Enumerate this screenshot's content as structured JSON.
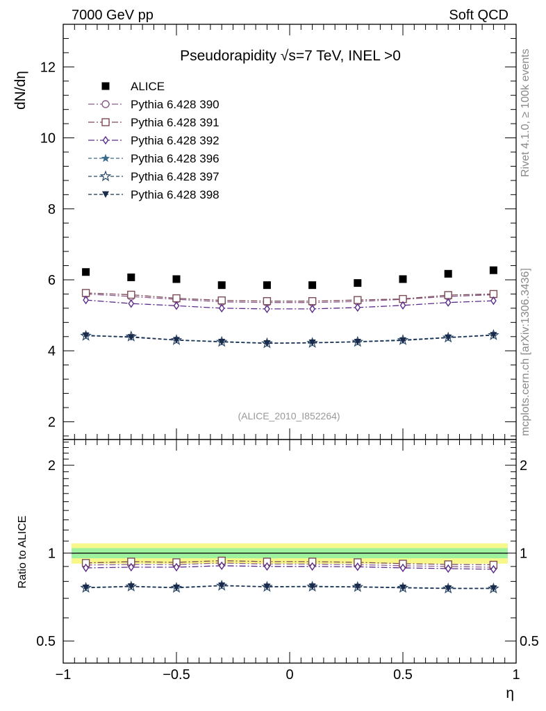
{
  "header": {
    "left": "7000 GeV pp",
    "right": "Soft QCD"
  },
  "side_labels": {
    "rivet": "Rivet 4.1.0, ≥ 100k events",
    "mcplots": "mcplots.cern.ch [arXiv:1306.3436]"
  },
  "chart_data": [
    {
      "type": "scatter",
      "panel": "main",
      "title": "Pseudorapidity √s=7 TeV, INEL >0",
      "ylabel": "dN/dη",
      "xlabel": "η",
      "watermark": "(ALICE_2010_I852264)",
      "xlim": [
        -1.0,
        1.0
      ],
      "ylim": [
        1.5,
        13.2
      ],
      "yticks": [
        2,
        4,
        6,
        8,
        10,
        12
      ],
      "x": [
        -0.9,
        -0.7,
        -0.5,
        -0.3,
        -0.1,
        0.1,
        0.3,
        0.5,
        0.7,
        0.9
      ],
      "legend_position": "top-left",
      "series": [
        {
          "name": "ALICE",
          "marker": "square-filled",
          "color": "#000000",
          "dash": "none",
          "values": [
            6.22,
            6.07,
            6.02,
            5.85,
            5.85,
            5.85,
            5.91,
            6.02,
            6.17,
            6.27
          ]
        },
        {
          "name": "Pythia 6.428 390",
          "marker": "circle-open",
          "color": "#8c5a8c",
          "dash": "dashdot",
          "values": [
            5.6,
            5.53,
            5.45,
            5.38,
            5.36,
            5.36,
            5.39,
            5.45,
            5.53,
            5.58
          ]
        },
        {
          "name": "Pythia 6.428 391",
          "marker": "square-open",
          "color": "#7a4a55",
          "dash": "dashdot",
          "values": [
            5.63,
            5.58,
            5.48,
            5.42,
            5.4,
            5.4,
            5.43,
            5.46,
            5.57,
            5.6
          ]
        },
        {
          "name": "Pythia 6.428 392",
          "marker": "diamond-open",
          "color": "#5a2a8a",
          "dash": "dashdot",
          "values": [
            5.43,
            5.33,
            5.27,
            5.2,
            5.18,
            5.18,
            5.22,
            5.28,
            5.36,
            5.41
          ]
        },
        {
          "name": "Pythia 6.428 396",
          "marker": "star-filled",
          "color": "#3a6a8a",
          "dash": "dashed",
          "values": [
            4.44,
            4.39,
            4.31,
            4.26,
            4.22,
            4.23,
            4.26,
            4.31,
            4.38,
            4.45
          ]
        },
        {
          "name": "Pythia 6.428 397",
          "marker": "star-open",
          "color": "#2a4a6a",
          "dash": "dashed",
          "values": [
            4.42,
            4.4,
            4.3,
            4.25,
            4.21,
            4.22,
            4.25,
            4.3,
            4.37,
            4.44
          ]
        },
        {
          "name": "Pythia 6.428 398",
          "marker": "triangle-down-filled",
          "color": "#1a2a4a",
          "dash": "dashed",
          "values": [
            4.43,
            4.38,
            4.3,
            4.25,
            4.21,
            4.23,
            4.25,
            4.29,
            4.37,
            4.44
          ]
        }
      ]
    },
    {
      "type": "scatter",
      "panel": "ratio",
      "ylabel": "Ratio to ALICE",
      "xlabel": "η",
      "xlim": [
        -1.0,
        1.0
      ],
      "ylim": [
        0.42,
        2.45
      ],
      "scale": "log",
      "yticks": [
        0.5,
        1,
        2
      ],
      "xticks": [
        -1,
        -0.5,
        0,
        0.5,
        1
      ],
      "xtick_labels": [
        "−1",
        "−0.5",
        "0",
        "0.5",
        "1"
      ],
      "x": [
        -0.9,
        -0.7,
        -0.5,
        -0.3,
        -0.1,
        0.1,
        0.3,
        0.5,
        0.7,
        0.9
      ],
      "reference": {
        "value": 1.0,
        "band_inner": [
          0.96,
          1.04
        ],
        "band_outer": [
          0.92,
          1.08
        ]
      },
      "series": [
        {
          "name": "Pythia 6.428 390",
          "values": [
            0.91,
            0.915,
            0.913,
            0.925,
            0.917,
            0.917,
            0.913,
            0.905,
            0.9,
            0.895
          ]
        },
        {
          "name": "Pythia 6.428 391",
          "values": [
            0.925,
            0.935,
            0.93,
            0.942,
            0.935,
            0.935,
            0.93,
            0.92,
            0.915,
            0.912
          ]
        },
        {
          "name": "Pythia 6.428 392",
          "values": [
            0.89,
            0.895,
            0.895,
            0.905,
            0.9,
            0.9,
            0.898,
            0.89,
            0.885,
            0.88
          ]
        },
        {
          "name": "Pythia 6.428 396",
          "values": [
            0.763,
            0.77,
            0.763,
            0.775,
            0.768,
            0.77,
            0.767,
            0.763,
            0.758,
            0.758
          ]
        },
        {
          "name": "Pythia 6.428 397",
          "values": [
            0.76,
            0.768,
            0.76,
            0.773,
            0.766,
            0.767,
            0.765,
            0.76,
            0.756,
            0.756
          ]
        },
        {
          "name": "Pythia 6.428 398",
          "values": [
            0.761,
            0.769,
            0.761,
            0.774,
            0.767,
            0.768,
            0.766,
            0.761,
            0.757,
            0.757
          ]
        }
      ]
    }
  ]
}
